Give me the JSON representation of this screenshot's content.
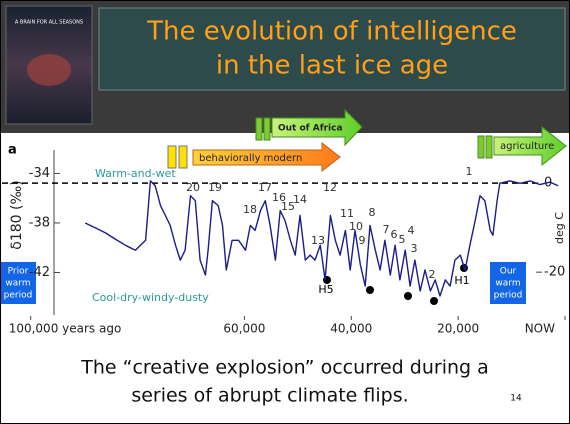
{
  "slide": {
    "title_lines": [
      "The evolution of intelligence",
      "in the last ice age"
    ],
    "book_title": "A BRAIN FOR ALL SEASONS",
    "caption_lines": [
      "The “creative explosion” occurred during a",
      "series of abrupt climate flips."
    ],
    "page_number": 14
  },
  "chart_data": {
    "type": "line",
    "panel_label": "a",
    "y_label": "δ180 (‰)",
    "y2_label": "deg C",
    "color": "#1c1c8a",
    "x": [
      89800,
      87900,
      86000,
      84200,
      82300,
      80400,
      78500,
      77600,
      76700,
      75700,
      74800,
      73900,
      72900,
      72000,
      71100,
      70100,
      69200,
      68300,
      67300,
      66800,
      66000,
      64900,
      64100,
      63400,
      62300,
      61100,
      59800,
      58900,
      58000,
      57000,
      56100,
      55200,
      54200,
      53300,
      52400,
      51400,
      50500,
      49600,
      48600,
      47700,
      46800,
      45800,
      44900,
      43900,
      43000,
      42100,
      41100,
      40200,
      39300,
      38300,
      37400,
      36500,
      35500,
      34600,
      33700,
      32700,
      31800,
      30900,
      29900,
      29000,
      28100,
      27100,
      26200,
      25200,
      24300,
      23400,
      22400,
      21500,
      20600,
      19600,
      18700,
      17800,
      16800,
      15900,
      15000,
      14000,
      13500,
      12700,
      12200,
      10300,
      8400,
      6500,
      4700,
      2800,
      1300
    ],
    "values": [
      -38.0,
      -38.4,
      -38.8,
      -39.3,
      -39.8,
      -40.2,
      -39.4,
      -34.6,
      -35.0,
      -36.6,
      -37.4,
      -38.2,
      -39.8,
      -41.0,
      -40.2,
      -35.8,
      -36.2,
      -41.0,
      -42.2,
      -40.2,
      -36.2,
      -36.6,
      -38.2,
      -41.8,
      -39.4,
      -39.4,
      -40.2,
      -38.2,
      -38.6,
      -37.0,
      -36.2,
      -38.2,
      -41.0,
      -37.0,
      -37.8,
      -39.4,
      -40.6,
      -37.4,
      -41.0,
      -40.6,
      -41.0,
      -39.8,
      -42.6,
      -37.4,
      -39.4,
      -40.6,
      -38.6,
      -41.8,
      -38.6,
      -41.4,
      -43.1,
      -38.2,
      -40.2,
      -41.8,
      -39.4,
      -42.2,
      -39.8,
      -42.6,
      -40.2,
      -43.1,
      -41.0,
      -43.5,
      -41.8,
      -43.5,
      -42.6,
      -43.9,
      -42.6,
      -43.1,
      -41.0,
      -40.6,
      -41.8,
      -39.8,
      -37.8,
      -35.8,
      -36.2,
      -38.6,
      -39.0,
      -36.2,
      -34.8,
      -34.6,
      -34.8,
      -34.6,
      -34.9,
      -34.7,
      -35.0
    ],
    "xlim": [
      105000,
      0
    ],
    "xticks": [
      {
        "value": 100000,
        "label": "100,000 years ago"
      },
      {
        "value": 60000,
        "label": "60,000"
      },
      {
        "value": 40000,
        "label": "40,000"
      },
      {
        "value": 20000,
        "label": "20,000"
      },
      {
        "value": 0,
        "label": "NOW"
      }
    ],
    "ylim": [
      -46,
      -31.3
    ],
    "yticks": [
      -34,
      -38,
      -42
    ],
    "y2lim": [
      -31.2,
      9.7
    ],
    "y2ticks": [
      0,
      -20
    ],
    "annotations": {
      "warm": "Warm-and-wet",
      "cool": "Cool-dry-windy-dusty",
      "events": [
        20,
        19,
        18,
        17,
        16,
        15,
        14,
        13,
        12,
        11,
        10,
        9,
        8,
        7,
        6,
        5,
        4,
        3,
        2,
        1
      ],
      "heinrich": [
        "H5",
        "H1"
      ],
      "prior": [
        "Prior",
        "warm",
        "period"
      ],
      "ours": [
        "Our",
        "warm",
        "period"
      ],
      "arrows": [
        "behaviorally modern",
        "Out of Africa",
        "agriculture"
      ]
    }
  }
}
